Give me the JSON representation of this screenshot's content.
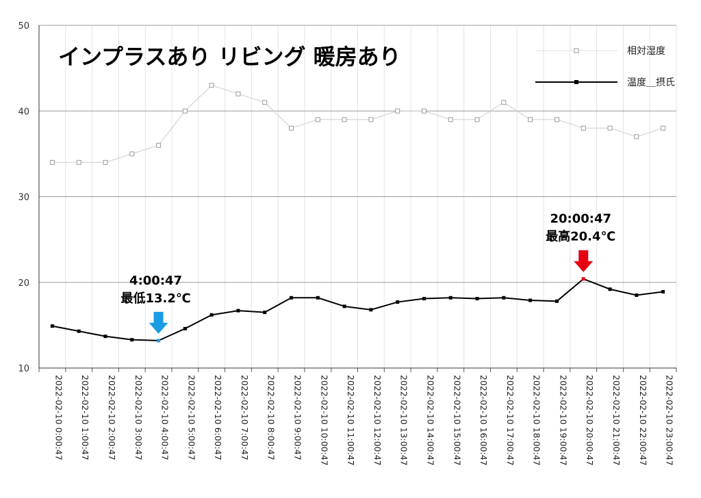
{
  "chart_data": {
    "type": "line",
    "title": "インプラスあり リビング 暖房あり",
    "xlabel": "",
    "ylabel": "",
    "ylim": [
      10,
      50
    ],
    "yticks": [
      "10",
      "20",
      "30",
      "40",
      "50"
    ],
    "grid": true,
    "legend_position": "top-right",
    "categories": [
      "2022-02-10 0:00:47",
      "2022-02-10 1:00:47",
      "2022-02-10 2:00:47",
      "2022-02-10 3:00:47",
      "2022-02-10 4:00:47",
      "2022-02-10 5:00:47",
      "2022-02-10 6:00:47",
      "2022-02-10 7:00:47",
      "2022-02-10 8:00:47",
      "2022-02-10 9:00:47",
      "2022-02-10 10:00:47",
      "2022-02-10 11:00:47",
      "2022-02-10 12:00:47",
      "2022-02-10 13:00:47",
      "2022-02-10 14:00:47",
      "2022-02-10 15:00:47",
      "2022-02-10 16:00:47",
      "2022-02-10 17:00:47",
      "2022-02-10 18:00:47",
      "2022-02-10 19:00:47",
      "2022-02-10 20:00:47",
      "2022-02-10 21:00:47",
      "2022-02-10 22:00:47",
      "2022-02-10 23:00:47"
    ],
    "series": [
      {
        "name": "相対湿度",
        "color": "#cccccc",
        "marker": "hollow-square",
        "values": [
          34,
          34,
          34,
          35,
          36,
          40,
          43,
          42,
          41,
          38,
          39,
          39,
          39,
          40,
          40,
          39,
          39,
          41,
          39,
          39,
          38,
          38,
          37,
          38
        ]
      },
      {
        "name": "温度＿摂氏",
        "color": "#000000",
        "marker": "filled-square",
        "values": [
          14.9,
          14.3,
          13.7,
          13.3,
          13.2,
          14.6,
          16.2,
          16.7,
          16.5,
          18.2,
          18.2,
          17.2,
          16.8,
          17.7,
          18.1,
          18.2,
          18.1,
          18.2,
          17.9,
          17.8,
          20.4,
          19.2,
          18.5,
          18.9
        ]
      }
    ],
    "annotations": [
      {
        "index": 4,
        "series": 1,
        "time": "4:00:47",
        "label": "最低13.2℃",
        "arrow_color": "#1a9be6"
      },
      {
        "index": 20,
        "series": 1,
        "time": "20:00:47",
        "label": "最高20.4℃",
        "arrow_color": "#e60012"
      }
    ]
  }
}
